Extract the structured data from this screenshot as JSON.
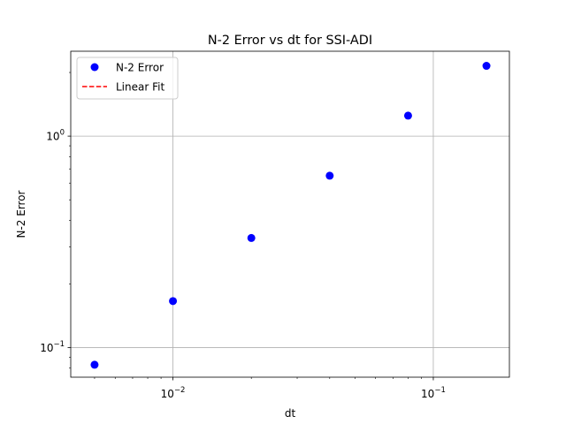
{
  "chart_data": {
    "type": "scatter",
    "title": "N-2 Error vs dt for SSI-ADI",
    "xlabel": "dt",
    "ylabel": "N-2 Error",
    "xscale": "log",
    "yscale": "log",
    "xlim": [
      0.00405,
      0.196
    ],
    "ylim": [
      0.0725,
      2.52
    ],
    "grid": true,
    "legend_position": "upper left",
    "x_major_ticks": [
      {
        "value": 0.01,
        "base": "10",
        "exp": "−2"
      },
      {
        "value": 0.1,
        "base": "10",
        "exp": "−1"
      }
    ],
    "y_major_ticks": [
      {
        "value": 0.1,
        "base": "10",
        "exp": "−1"
      },
      {
        "value": 1,
        "base": "10",
        "exp": "0"
      }
    ],
    "series": [
      {
        "name": "N-2 Error",
        "kind": "points",
        "color": "#0000ff",
        "marker": "circle",
        "x": [
          0.005,
          0.01,
          0.02,
          0.04,
          0.08,
          0.16
        ],
        "y": [
          0.083,
          0.166,
          0.33,
          0.65,
          1.25,
          2.15
        ]
      },
      {
        "name": "Linear Fit",
        "kind": "line",
        "color": "#ff0000",
        "linestyle": "dashed",
        "x": [],
        "y": []
      }
    ]
  }
}
